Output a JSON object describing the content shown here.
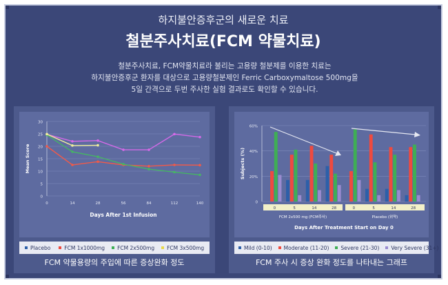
{
  "header": {
    "subtitle": "하지불안증후군의 새로운 치료",
    "title": "철분주사치료(FCM 약물치료)",
    "description": [
      "철분주사치료, FCM약물치료라 불리는 고용량 철분제를 이용한 치료는",
      "하지불안증후군 환자를 대상으로 고용량철분제인 Ferric Carboxymaltose 500mg을",
      "5일 간격으로 두번 주사한 실험 결과로도 확인할 수 있습니다."
    ]
  },
  "colors": {
    "placebo": "#d46ae8",
    "fcm1x1000": "#f05a4a",
    "fcm2x500": "#46b564",
    "fcm3x500": "#f2ef9a",
    "mild": "#2d5fa8",
    "moderate": "#f04a3e",
    "severe": "#3fae55",
    "very_severe": "#9a8bd0"
  },
  "chart_data": [
    {
      "type": "line",
      "caption": "FCM 약물용량의 주입에 따른 증상완화 정도",
      "xlabel": "Days After 1st Infusion",
      "ylabel": "Mean Score",
      "x": [
        0,
        14,
        28,
        56,
        84,
        112,
        140
      ],
      "ylim": [
        0,
        30
      ],
      "yticks": [
        0,
        5,
        10,
        15,
        20,
        25,
        30
      ],
      "grid": true,
      "legend_position": "bottom",
      "series": [
        {
          "name": "Placebo",
          "x": [
            0,
            14,
            28,
            56,
            84,
            112,
            140
          ],
          "values": [
            24.8,
            22,
            22.3,
            18.6,
            18.6,
            24.9,
            23.7
          ]
        },
        {
          "name": "FCM 1x1000mg",
          "x": [
            0,
            14,
            28,
            56,
            84,
            112,
            140
          ],
          "values": [
            20,
            12.5,
            13.8,
            12.5,
            12,
            12.5,
            12.4
          ]
        },
        {
          "name": "FCM 2x500mg",
          "x": [
            0,
            14,
            28,
            56,
            84,
            112,
            140
          ],
          "values": [
            24.6,
            17.8,
            15.8,
            12.8,
            10.8,
            9.6,
            8.5
          ]
        },
        {
          "name": "FCM 3x500mg",
          "x": [
            0,
            14,
            28
          ],
          "values": [
            24.9,
            20.3,
            20.4
          ]
        }
      ]
    },
    {
      "type": "bar",
      "caption": "FCM 주사 시 증상 완화 정도를 나타내는 그래프",
      "xlabel": "Days After Treatment Start on Day 0",
      "ylabel": "Subjects (%)",
      "ylim": [
        0,
        60
      ],
      "yticks": [
        "0",
        "20%",
        "40%",
        "60%"
      ],
      "grid": true,
      "legend_position": "bottom",
      "groups": [
        {
          "name": "FCM 2x500 mg (FCM주사)",
          "categories": [
            "0",
            "5",
            "14",
            "28"
          ]
        },
        {
          "name": "Placebo (위약)",
          "categories": [
            "0",
            "5",
            "14",
            "28"
          ]
        }
      ],
      "series": [
        {
          "name": "Mild (0-10)",
          "values": [
            0,
            17,
            17,
            28,
            0,
            10,
            10,
            5
          ]
        },
        {
          "name": "Moderate (11-20)",
          "values": [
            24,
            37,
            44,
            37,
            24,
            53,
            43,
            43
          ]
        },
        {
          "name": "Severe (21-30)",
          "values": [
            55,
            41,
            30,
            22,
            57,
            31,
            37,
            45
          ]
        },
        {
          "name": "Very Severe (31+)",
          "values": [
            21,
            5,
            9,
            13,
            17,
            5,
            9,
            5
          ]
        }
      ]
    }
  ]
}
